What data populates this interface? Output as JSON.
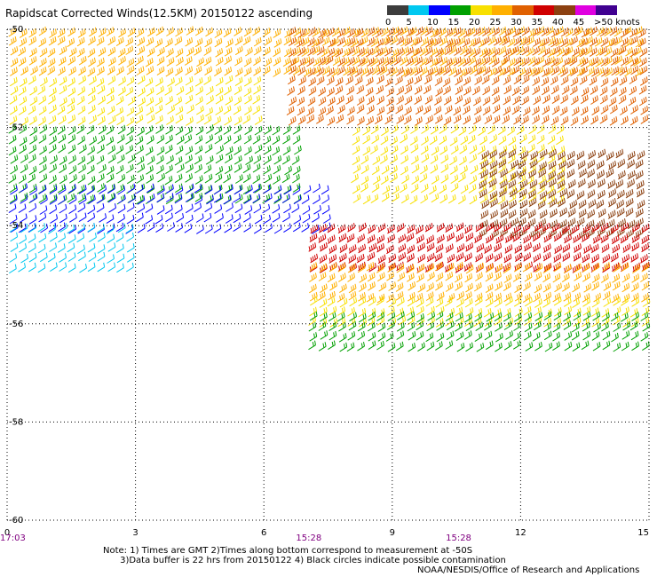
{
  "title": "Rapidscat Corrected Winds(12.5KM) 20150122 ascending",
  "legend": {
    "colors": [
      "#3c3c3c",
      "#00c8f0",
      "#0000ff",
      "#00a000",
      "#f8e000",
      "#ffb000",
      "#e06000",
      "#d00000",
      "#8c4010",
      "#e000e0",
      "#400090"
    ],
    "labels": [
      "0",
      "5",
      "10",
      "15",
      "20",
      "25",
      "30",
      "35",
      "40",
      "45",
      ">50 knots"
    ]
  },
  "axes": {
    "x_ticks": [
      "0",
      "3",
      "6",
      "9",
      "12",
      "15"
    ],
    "y_ticks": [
      "-50",
      "-52",
      "-54",
      "-56",
      "-58",
      "-60"
    ],
    "xlim": [
      0,
      15
    ],
    "ylim": [
      -60,
      -50
    ],
    "grid": "dotted"
  },
  "times": [
    "17:03",
    "15:28",
    "15:28"
  ],
  "notes": {
    "line1": "Note: 1) Times are GMT 2)Times along bottom correspond to measurement at -50S",
    "line2": "3)Data buffer is 22 hrs from 20150122 4) Black circles indicate possible contamination"
  },
  "credit": "NOAA/NESDIS/Office of Research and Applications",
  "chart_data": {
    "type": "scatter",
    "title": "Rapidscat Corrected Winds(12.5KM) 20150122 ascending",
    "xlabel": "",
    "ylabel": "",
    "xlim": [
      0,
      15
    ],
    "ylim": [
      -60,
      -50
    ],
    "x_ticks": [
      0,
      3,
      6,
      9,
      12,
      15
    ],
    "y_ticks": [
      -50,
      -52,
      -54,
      -56,
      -58,
      -60
    ],
    "grid": true,
    "legend": "top-right",
    "units": "knots",
    "color_scale": [
      {
        "min": 0,
        "max": 5,
        "color": "#3c3c3c"
      },
      {
        "min": 5,
        "max": 10,
        "color": "#00c8f0"
      },
      {
        "min": 10,
        "max": 15,
        "color": "#0000ff"
      },
      {
        "min": 15,
        "max": 20,
        "color": "#00a000"
      },
      {
        "min": 20,
        "max": 25,
        "color": "#f8e000"
      },
      {
        "min": 25,
        "max": 30,
        "color": "#ffb000"
      },
      {
        "min": 30,
        "max": 35,
        "color": "#e06000"
      },
      {
        "min": 35,
        "max": 40,
        "color": "#d00000"
      },
      {
        "min": 40,
        "max": 45,
        "color": "#8c4010"
      },
      {
        "min": 45,
        "max": 50,
        "color": "#e000e0"
      },
      {
        "min": 50,
        "max": 999,
        "color": "#400090"
      }
    ],
    "wind_regions": [
      {
        "lon": [
          0,
          15
        ],
        "lat": [
          -51,
          -50
        ],
        "speed_knots": 25,
        "color": "#ffb000"
      },
      {
        "lon": [
          6.5,
          15
        ],
        "lat": [
          -52,
          -50
        ],
        "speed_knots": 32,
        "color": "#e06000"
      },
      {
        "lon": [
          0,
          6
        ],
        "lat": [
          -52,
          -51
        ],
        "speed_knots": 22,
        "color": "#f8e000"
      },
      {
        "lon": [
          0,
          7
        ],
        "lat": [
          -53.5,
          -52
        ],
        "speed_knots": 17,
        "color": "#00a000"
      },
      {
        "lon": [
          0,
          7.5
        ],
        "lat": [
          -54.2,
          -53.2
        ],
        "speed_knots": 12,
        "color": "#0000ff"
      },
      {
        "lon": [
          0,
          3
        ],
        "lat": [
          -55,
          -54
        ],
        "speed_knots": 7,
        "color": "#00c8f0"
      },
      {
        "lon": [
          8,
          13
        ],
        "lat": [
          -53.5,
          -52
        ],
        "speed_knots": 22,
        "color": "#f8e000"
      },
      {
        "lon": [
          11,
          15
        ],
        "lat": [
          -54.2,
          -52.5
        ],
        "speed_knots": 42,
        "color": "#8c4010"
      },
      {
        "lon": [
          7,
          15
        ],
        "lat": [
          -55,
          -54
        ],
        "speed_knots": 37,
        "color": "#d00000"
      },
      {
        "lon": [
          7,
          15
        ],
        "lat": [
          -55.6,
          -54.8
        ],
        "speed_knots": 27,
        "color": "#ffb000"
      },
      {
        "lon": [
          7,
          15
        ],
        "lat": [
          -56,
          -55.5
        ],
        "speed_knots": 22,
        "color": "#f8e000"
      },
      {
        "lon": [
          7,
          15
        ],
        "lat": [
          -56.5,
          -55.8
        ],
        "speed_knots": 17,
        "color": "#00a000"
      }
    ]
  }
}
